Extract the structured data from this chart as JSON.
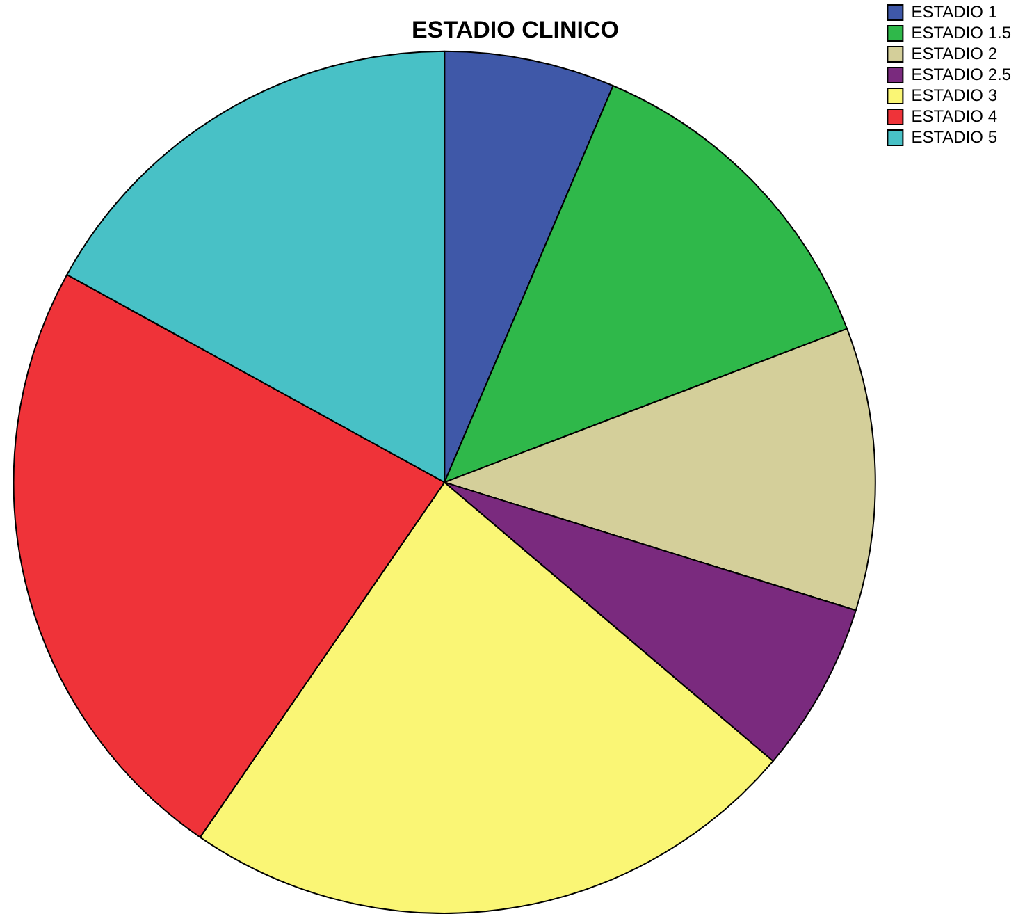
{
  "chart_data": {
    "type": "pie",
    "title": "ESTADIO CLINICO",
    "categories": [
      "ESTADIO 1",
      "ESTADIO 1.5",
      "ESTADIO 2",
      "ESTADIO 2.5",
      "ESTADIO 3",
      "ESTADIO 4",
      "ESTADIO 5"
    ],
    "values": [
      6.4,
      12.8,
      10.6,
      6.4,
      23.4,
      23.4,
      17.0
    ],
    "colors": [
      "#3f58a8",
      "#2fb84a",
      "#d4cf9a",
      "#7a2a7e",
      "#faf675",
      "#ef3339",
      "#48c1c6"
    ],
    "legend": "top right"
  }
}
